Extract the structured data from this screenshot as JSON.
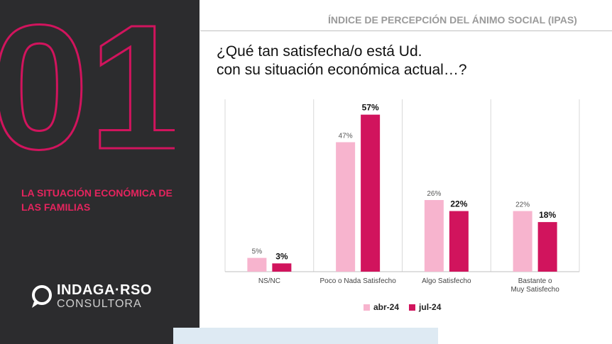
{
  "left_panel": {
    "number": "01",
    "section_title": "LA SITUACIÓN ECONÓMICA DE LAS FAMILIAS",
    "logo": {
      "brand": "INDAGA·RSO",
      "sub": "CONSULTORA",
      "icon": "speech-bubble-icon"
    }
  },
  "header": {
    "text": "ÍNDICE DE PERCEPCIÓN DEL ÁNIMO SOCIAL (IPAS)"
  },
  "question": {
    "line1": "¿Qué tan satisfecha/o está Ud.",
    "line2": "con su situación económica actual…?"
  },
  "colors": {
    "accent": "#e5245e",
    "dark_panel": "#2c2c2e",
    "series_abr": "#f7b4ce",
    "series_jul": "#d1145d"
  },
  "chart_data": {
    "type": "bar",
    "categories": [
      "NS/NC",
      "Poco o Nada Satisfecho",
      "Algo Satisfecho",
      "Bastante o Muy Satisfecho"
    ],
    "series": [
      {
        "name": "abr-24",
        "values": [
          5,
          47,
          26,
          22
        ],
        "labels": [
          "5%",
          "47%",
          "26%",
          "22%"
        ],
        "color": "#f7b4ce"
      },
      {
        "name": "jul-24",
        "values": [
          3,
          57,
          22,
          18
        ],
        "labels": [
          "3%",
          "57%",
          "22%",
          "18%"
        ],
        "color": "#d1145d"
      }
    ],
    "ylim": [
      0,
      60
    ],
    "grid": false,
    "legend": "bottom"
  }
}
